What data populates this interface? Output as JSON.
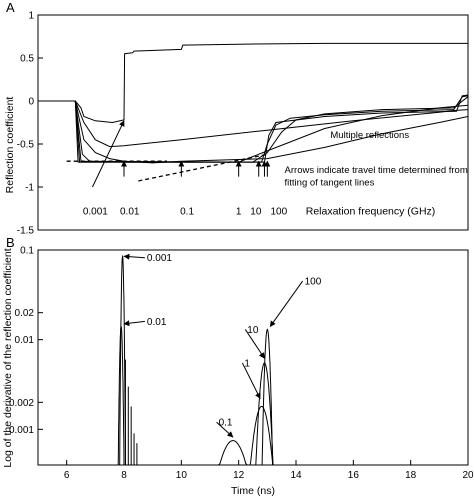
{
  "chart_data": [
    {
      "panel_label": "A",
      "type": "line",
      "xlim": [
        5,
        20
      ],
      "ylim": [
        -1.5,
        1
      ],
      "ylabel": "Reflection coefficient",
      "yticks": [
        "1",
        "0.5",
        "0",
        "-0.5",
        "-1",
        "-1.5"
      ],
      "grid": false,
      "series": [
        {
          "points": [
            [
              5,
              0
            ],
            [
              6.3,
              0
            ],
            [
              6.5,
              -0.08
            ],
            [
              6.6,
              -0.18
            ],
            [
              7.0,
              -0.23
            ],
            [
              7.6,
              -0.25
            ],
            [
              8.0,
              -0.22
            ],
            [
              8.02,
              0.55
            ],
            [
              8.3,
              0.56
            ],
            [
              8.35,
              0.58
            ],
            [
              10,
              0.6
            ],
            [
              10.05,
              0.65
            ],
            [
              12,
              0.66
            ],
            [
              15,
              0.67
            ],
            [
              20,
              0.67
            ]
          ]
        },
        {
          "points": [
            [
              5,
              0
            ],
            [
              6.3,
              0
            ],
            [
              6.6,
              -0.25
            ],
            [
              7.0,
              -0.45
            ],
            [
              7.5,
              -0.53
            ],
            [
              8,
              -0.52
            ],
            [
              10,
              -0.45
            ],
            [
              13,
              -0.34
            ],
            [
              16,
              -0.23
            ],
            [
              19,
              -0.13
            ],
            [
              19.5,
              -0.11
            ],
            [
              20,
              -0.1
            ]
          ]
        },
        {
          "points": [
            [
              5,
              0
            ],
            [
              6.3,
              0
            ],
            [
              6.6,
              -0.45
            ],
            [
              7.0,
              -0.6
            ],
            [
              7.5,
              -0.67
            ],
            [
              8,
              -0.7
            ],
            [
              9,
              -0.72
            ],
            [
              10,
              -0.7
            ],
            [
              12,
              -0.68
            ],
            [
              13,
              -0.67
            ],
            [
              15,
              -0.54
            ],
            [
              17,
              -0.38
            ],
            [
              19,
              -0.25
            ],
            [
              20,
              -0.18
            ]
          ]
        },
        {
          "points": [
            [
              5,
              0
            ],
            [
              6.3,
              0
            ],
            [
              6.55,
              -0.62
            ],
            [
              6.8,
              -0.7
            ],
            [
              8,
              -0.71
            ],
            [
              12,
              -0.71
            ],
            [
              13,
              -0.58
            ],
            [
              15,
              -0.32
            ],
            [
              17,
              -0.17
            ],
            [
              19,
              -0.08
            ],
            [
              20,
              -0.05
            ]
          ]
        },
        {
          "points": [
            [
              5,
              0
            ],
            [
              6.3,
              0
            ],
            [
              6.5,
              -0.7
            ],
            [
              12.5,
              -0.71
            ],
            [
              13,
              -0.6
            ],
            [
              13.5,
              -0.36
            ],
            [
              14,
              -0.22
            ],
            [
              15,
              -0.15
            ],
            [
              17,
              -0.1
            ],
            [
              19.5,
              -0.08
            ],
            [
              20,
              0.05
            ]
          ]
        },
        {
          "points": [
            [
              5,
              0
            ],
            [
              6.3,
              0
            ],
            [
              6.45,
              -0.71
            ],
            [
              12.8,
              -0.71
            ],
            [
              13.0,
              -0.5
            ],
            [
              13.3,
              -0.28
            ],
            [
              13.8,
              -0.2
            ],
            [
              15,
              -0.16
            ],
            [
              17,
              -0.12
            ],
            [
              19.5,
              -0.1
            ],
            [
              19.8,
              0.05
            ],
            [
              20,
              0.06
            ]
          ]
        },
        {
          "points": [
            [
              5,
              0
            ],
            [
              6.3,
              0
            ],
            [
              6.4,
              -0.71
            ],
            [
              12.9,
              -0.71
            ],
            [
              13.05,
              -0.4
            ],
            [
              13.3,
              -0.25
            ],
            [
              15,
              -0.18
            ],
            [
              17,
              -0.14
            ],
            [
              19.6,
              -0.12
            ],
            [
              19.8,
              0.06
            ],
            [
              20,
              0.07
            ]
          ]
        }
      ],
      "tangent_lines": [
        [
          [
            6.0,
            -0.7
          ],
          [
            9.5,
            -0.7
          ]
        ],
        [
          [
            8.5,
            -0.93
          ],
          [
            13.0,
            -0.62
          ]
        ]
      ],
      "arrows": [
        {
          "from": [
            6.9,
            -1.0
          ],
          "to": [
            8.0,
            -0.23
          ]
        },
        {
          "from": [
            8.0,
            -0.88
          ],
          "to": [
            8.0,
            -0.7
          ]
        },
        {
          "from": [
            10.0,
            -0.88
          ],
          "to": [
            10.0,
            -0.7
          ]
        },
        {
          "from": [
            12.0,
            -0.88
          ],
          "to": [
            12.0,
            -0.7
          ]
        },
        {
          "from": [
            12.7,
            -0.88
          ],
          "to": [
            12.7,
            -0.7
          ]
        },
        {
          "from": [
            12.9,
            -0.88
          ],
          "to": [
            12.9,
            -0.7
          ]
        },
        {
          "from": [
            13.0,
            -0.88
          ],
          "to": [
            13.0,
            -0.7
          ]
        }
      ],
      "annotations": [
        {
          "text": "Multiple reflections",
          "x": 15.2,
          "y": -0.43
        },
        {
          "text": "Arrows indicate travel time determined from",
          "x": 13.6,
          "y": -0.84
        },
        {
          "text": "fitting of tangent lines",
          "x": 13.6,
          "y": -0.98
        }
      ],
      "freq_labels": [
        {
          "text": "0.001",
          "x": 7.0,
          "y": -1.32
        },
        {
          "text": "0.01",
          "x": 8.2,
          "y": -1.32
        },
        {
          "text": "0.1",
          "x": 10.2,
          "y": -1.32
        },
        {
          "text": "1",
          "x": 12.0,
          "y": -1.32
        },
        {
          "text": "10",
          "x": 12.6,
          "y": -1.32
        },
        {
          "text": "100",
          "x": 13.4,
          "y": -1.32
        }
      ],
      "freq_axis_label": "Relaxation frequency (GHz)",
      "freq_axis_label_pos": {
        "x": 16.6,
        "y": -1.32
      }
    },
    {
      "panel_label": "B",
      "type": "line",
      "yscale": "log",
      "xlim": [
        5,
        20
      ],
      "ylim": [
        0.0004,
        0.1
      ],
      "xlabel": "Time (ns)",
      "ylabel": "Log of the derivative of the reflection coefficient",
      "xticks": [
        6,
        8,
        10,
        12,
        14,
        16,
        18,
        20
      ],
      "xticklabels": [
        "6",
        "8",
        "10",
        "12",
        "14",
        "16",
        "18",
        "20"
      ],
      "yticks": [
        0.1,
        0.02,
        0.01,
        0.002,
        0.001
      ],
      "yticklabels": [
        "0.1",
        "0.02",
        "0.01",
        "0.002",
        "0.001"
      ],
      "grid": false,
      "peaks": [
        {
          "label": "0.001",
          "center": 7.95,
          "width": 0.09,
          "peak": 0.085
        },
        {
          "label": "0.01",
          "center": 7.9,
          "width": 0.11,
          "peak": 0.014
        },
        {
          "label": "0.1",
          "center": 11.8,
          "width": 1.2,
          "peak": 0.00075
        },
        {
          "label": "1",
          "center": 12.8,
          "width": 0.65,
          "peak": 0.0018
        },
        {
          "label": "10",
          "center": 12.9,
          "width": 0.38,
          "peak": 0.0055
        },
        {
          "label": "100",
          "center": 13.0,
          "width": 0.2,
          "peak": 0.013
        }
      ],
      "spikes": [
        [
          8.15,
          0.003
        ],
        [
          8.25,
          0.0018
        ],
        [
          8.35,
          0.0009
        ],
        [
          8.45,
          0.0007
        ],
        [
          8.05,
          0.006
        ]
      ],
      "peak_labels": [
        {
          "text": "0.001",
          "x": 8.8,
          "y": 0.082,
          "ax": 8.0,
          "ay": 0.085
        },
        {
          "text": "0.01",
          "x": 8.8,
          "y": 0.016,
          "ax": 8.0,
          "ay": 0.015
        },
        {
          "text": "100",
          "x": 14.3,
          "y": 0.045,
          "ax": 13.1,
          "ay": 0.014
        },
        {
          "text": "10",
          "x": 12.3,
          "y": 0.013,
          "ax": 12.9,
          "ay": 0.0062
        },
        {
          "text": "1",
          "x": 12.2,
          "y": 0.0055,
          "ax": 12.75,
          "ay": 0.0022
        },
        {
          "text": "0.1",
          "x": 11.3,
          "y": 0.0012,
          "ax": 11.8,
          "ay": 0.00082
        }
      ]
    }
  ]
}
